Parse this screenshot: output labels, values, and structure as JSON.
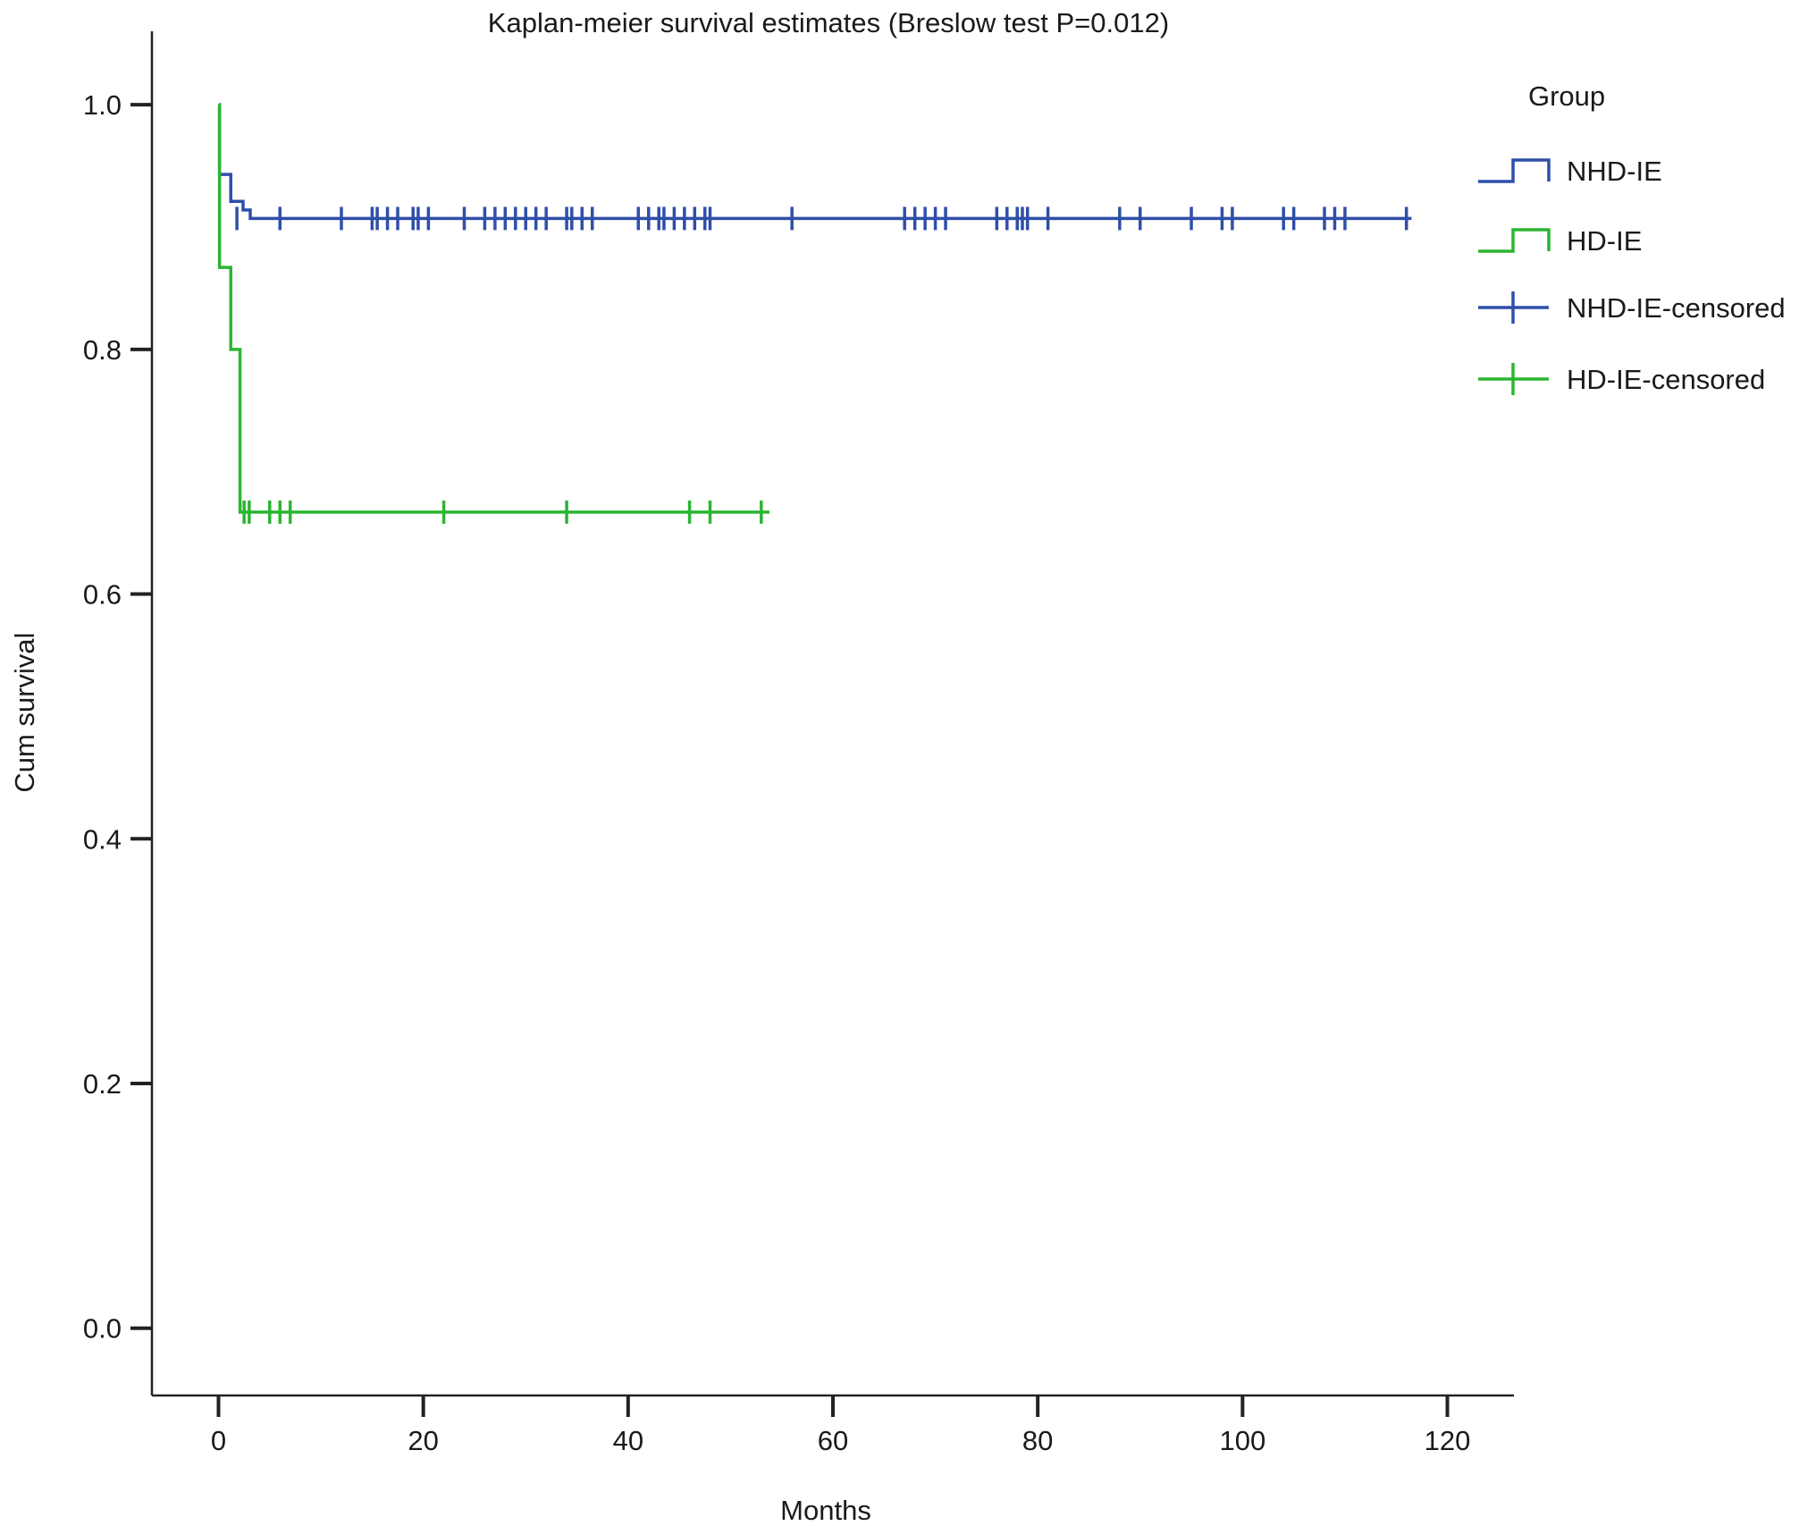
{
  "chart_data": {
    "type": "line",
    "title": "Kaplan-meier survival estimates (Breslow test P=0.012)",
    "xlabel": "Months",
    "ylabel": "Cum survival",
    "xlim": [
      -6.5,
      126.5
    ],
    "ylim": [
      -0.055,
      1.06
    ],
    "x_ticks": [
      0,
      20,
      40,
      60,
      80,
      100,
      120
    ],
    "x_tick_labels": [
      "0",
      "20",
      "40",
      "60",
      "80",
      "100",
      "120"
    ],
    "y_ticks": [
      0.0,
      0.2,
      0.4,
      0.6,
      0.8,
      1.0
    ],
    "y_tick_labels": [
      "0.0",
      "0.2",
      "0.4",
      "0.6",
      "0.8",
      "1.0"
    ],
    "grid": false,
    "legend": {
      "title": "Group",
      "position": "right",
      "entries": [
        "NHD-IE",
        "HD-IE",
        "NHD-IE-censored",
        "HD-IE-censored"
      ]
    },
    "series": [
      {
        "name": "NHD-IE",
        "color": "#2f4fa8",
        "steps": [
          [
            0,
            1.0
          ],
          [
            0.1,
            0.943
          ],
          [
            1.2,
            0.921
          ],
          [
            2.4,
            0.914
          ],
          [
            3.1,
            0.907
          ],
          [
            116.5,
            0.907
          ]
        ],
        "censored": {
          "name": "NHD-IE-censored",
          "x": [
            1.8,
            6,
            12,
            15,
            15.5,
            16.5,
            17.5,
            19,
            19.5,
            20.5,
            24,
            26,
            27,
            28,
            29,
            30,
            31,
            32,
            34,
            34.5,
            35.5,
            36.5,
            41,
            42,
            43,
            43.5,
            44.5,
            45.5,
            46.5,
            47.5,
            48,
            56,
            67,
            68,
            69,
            70,
            71,
            76,
            77,
            78,
            78.5,
            79,
            81,
            88,
            90,
            95,
            98,
            99,
            104,
            105,
            108,
            109,
            110,
            116
          ],
          "y": 0.907
        }
      },
      {
        "name": "HD-IE",
        "color": "#2bb531",
        "steps": [
          [
            0,
            1.0
          ],
          [
            0.1,
            0.867
          ],
          [
            1.2,
            0.8
          ],
          [
            2.1,
            0.667
          ],
          [
            53.8,
            0.667
          ]
        ],
        "censored": {
          "name": "HD-IE-censored",
          "x": [
            2.5,
            3,
            5,
            6,
            7,
            22,
            34,
            46,
            48,
            53
          ],
          "y": 0.667
        }
      }
    ]
  }
}
